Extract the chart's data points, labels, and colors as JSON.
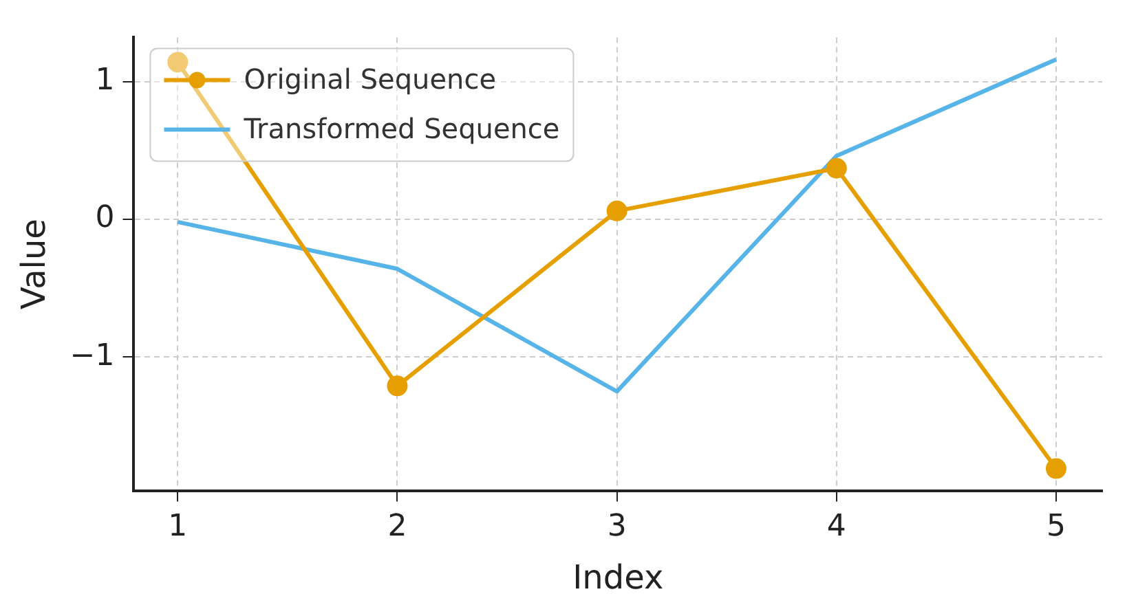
{
  "chart_data": {
    "type": "line",
    "xlabel": "Index",
    "ylabel": "Value",
    "x": [
      1,
      2,
      3,
      4,
      5
    ],
    "series": [
      {
        "name": "Original Sequence",
        "color": "#e69f00",
        "marker": "circle",
        "values": [
          1.14,
          -1.21,
          0.06,
          0.37,
          -1.81
        ]
      },
      {
        "name": "Transformed Sequence",
        "color": "#56b4e9",
        "marker": "none",
        "values": [
          -0.02,
          -0.36,
          -1.25,
          0.46,
          1.16
        ]
      }
    ],
    "xlim": [
      0.8,
      5.21
    ],
    "xticks": [
      1,
      2,
      3,
      4,
      5
    ],
    "ylim": [
      -1.97,
      1.32
    ],
    "yticks": [
      {
        "value": -1,
        "label": "−1"
      },
      0,
      1
    ],
    "grid": true,
    "legend": "top left",
    "line_style": "solid"
  }
}
